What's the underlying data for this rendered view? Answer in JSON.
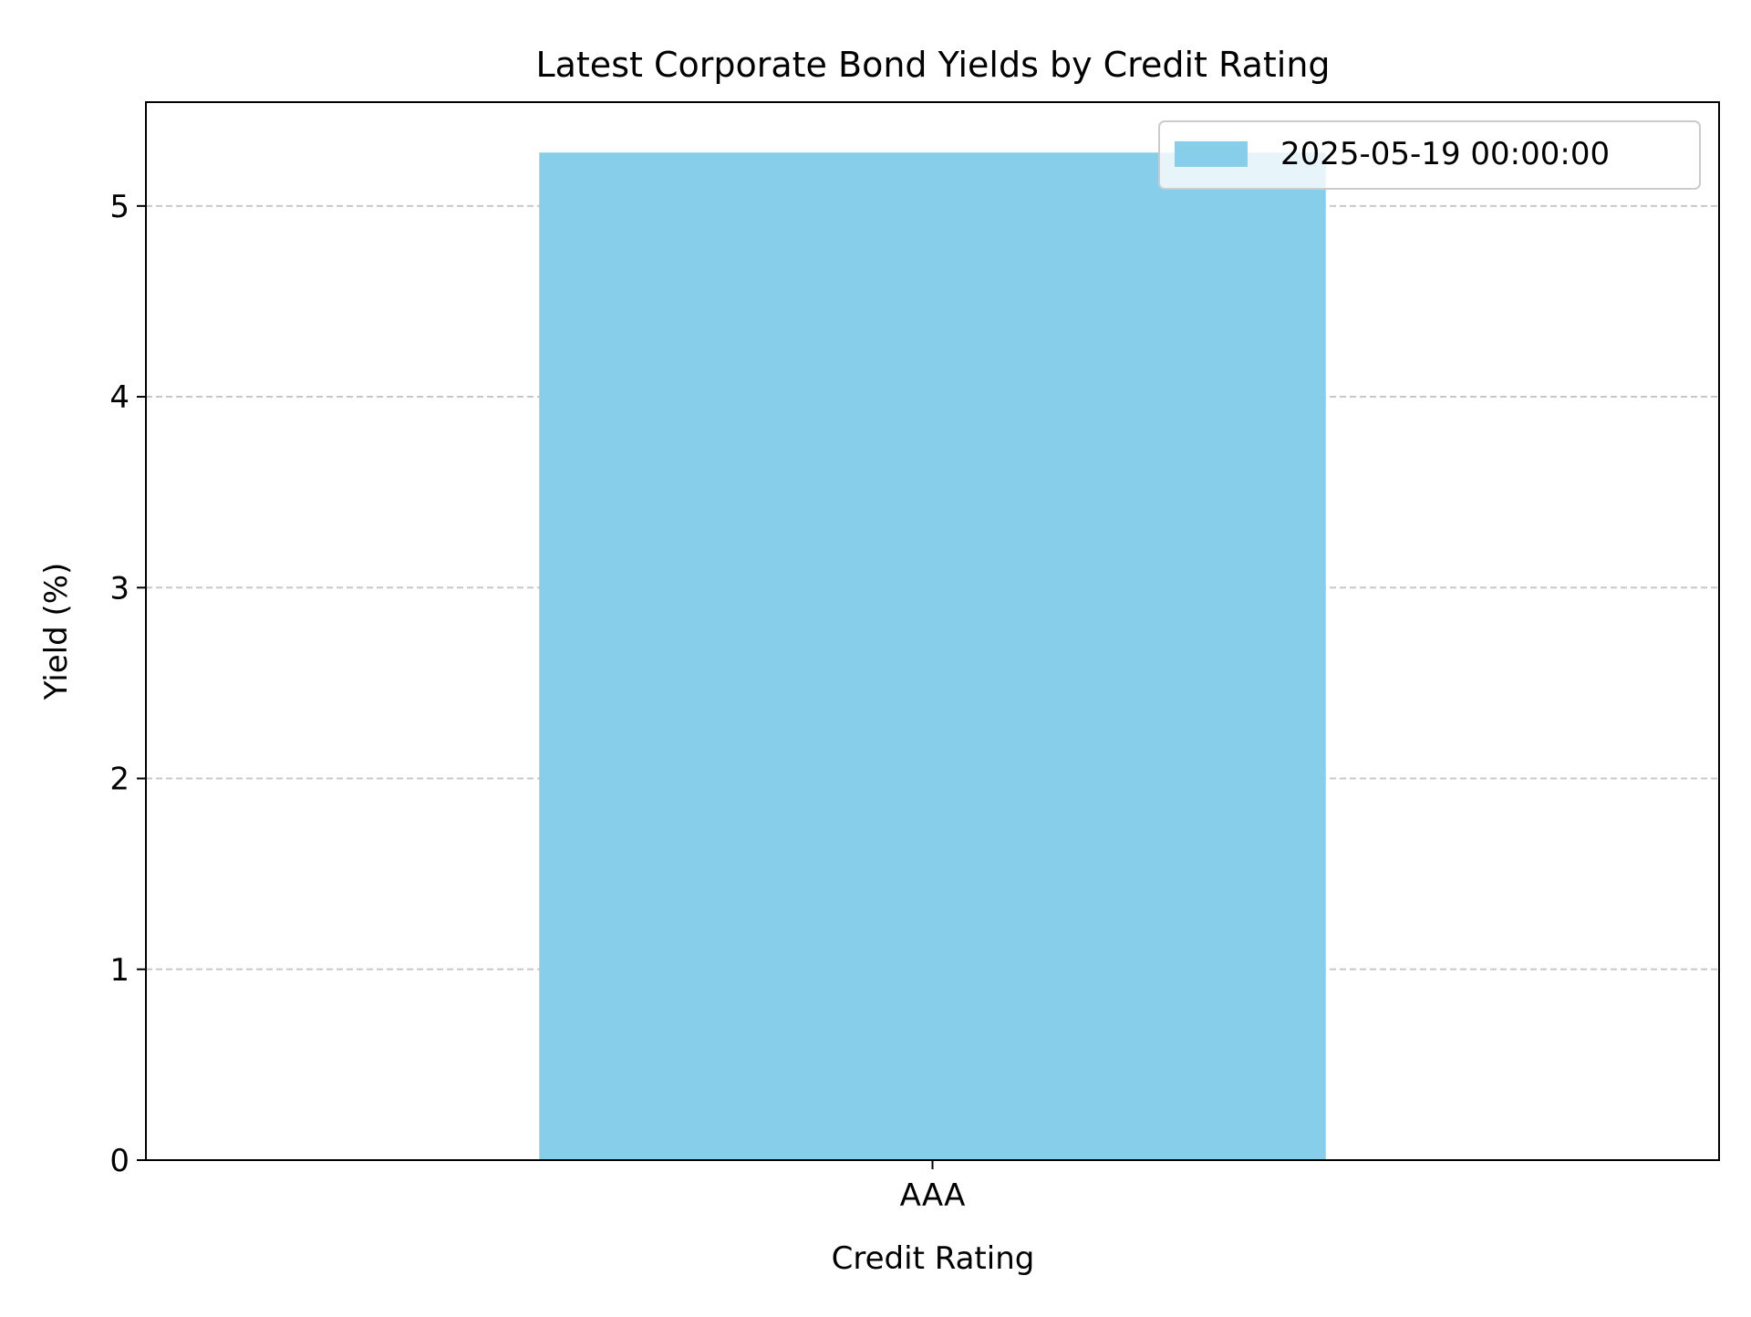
{
  "chart_data": {
    "type": "bar",
    "title": "Latest Corporate Bond Yields by Credit Rating",
    "xlabel": "Credit Rating",
    "ylabel": "Yield (%)",
    "categories": [
      "AAA"
    ],
    "series": [
      {
        "name": "2025-05-19 00:00:00",
        "values": [
          5.28
        ],
        "color": "#87CEEB"
      }
    ],
    "ylim": [
      0,
      5.544
    ],
    "yticks": [
      0,
      1,
      2,
      3,
      4,
      5
    ],
    "grid": "y, dashed",
    "legend_position": "top-right"
  }
}
